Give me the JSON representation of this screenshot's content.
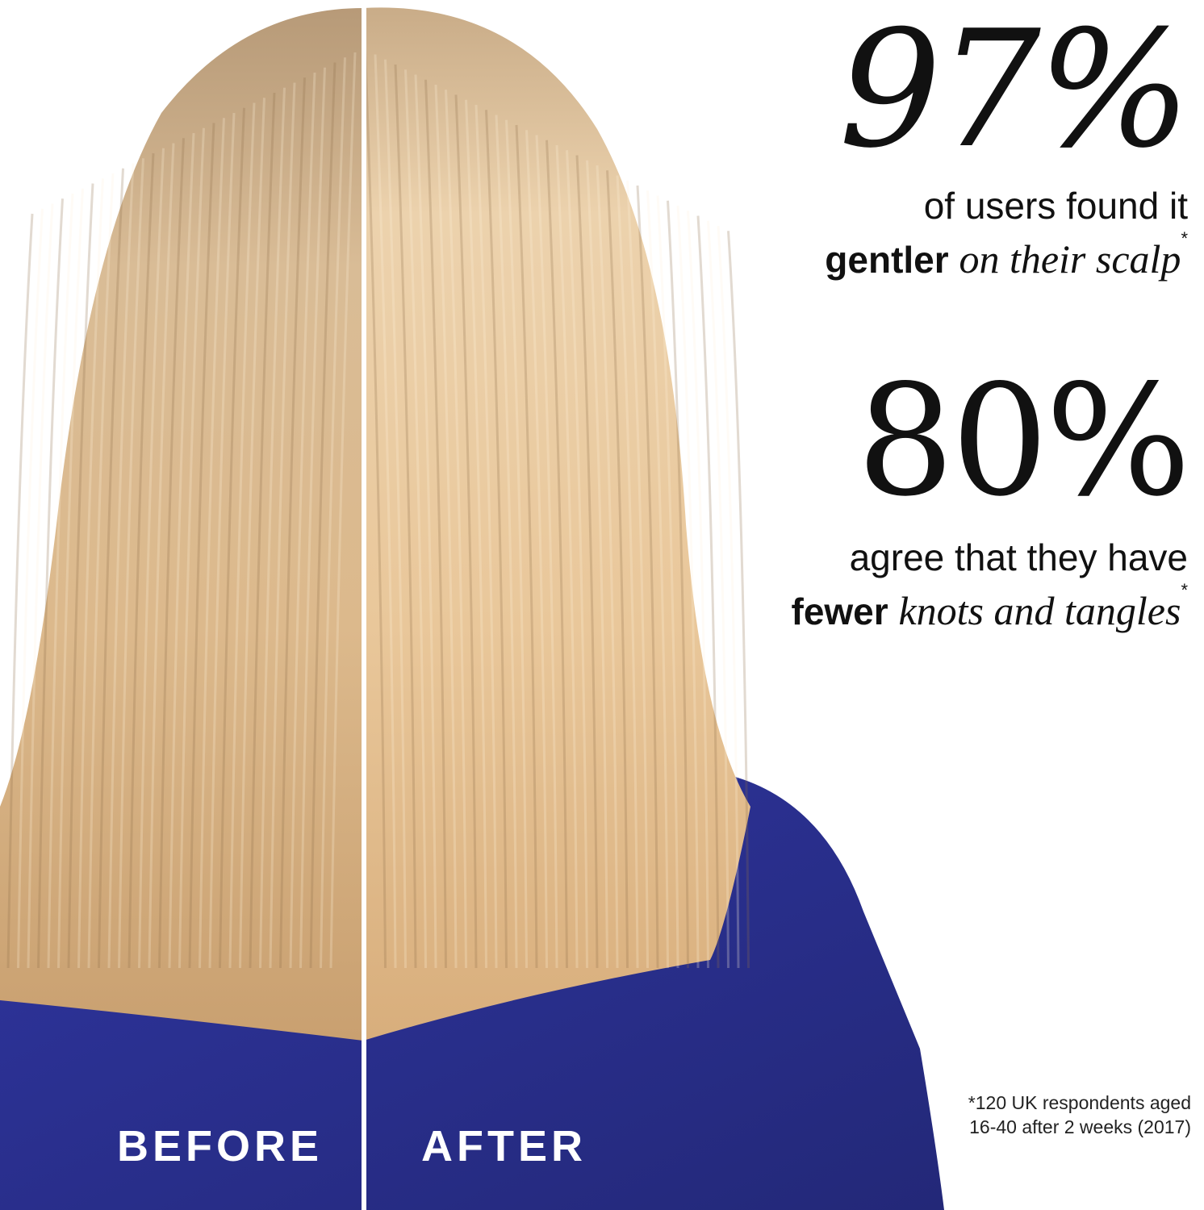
{
  "stats": [
    {
      "value": "97%",
      "text": "of users found it",
      "bold": "gentler",
      "italic": "on their scalp",
      "mark": "*"
    },
    {
      "value": "80%",
      "text": "agree that they have",
      "bold": "fewer",
      "italic": "knots and tangles",
      "mark": "*"
    }
  ],
  "labels": {
    "before": "BEFORE",
    "after": "AFTER"
  },
  "footnote": "*120 UK respondents aged 16-40 after 2 weeks (2017)",
  "colors": {
    "shirt": "#2a2f8c",
    "hair": "#e0c095",
    "text": "#111111"
  }
}
